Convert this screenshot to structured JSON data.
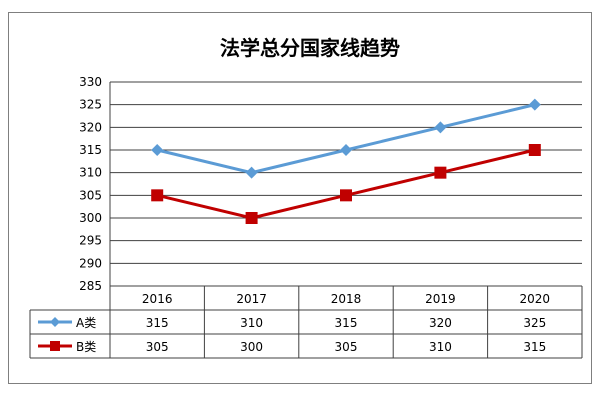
{
  "chart_data": {
    "type": "line",
    "title": "法学总分国家线趋势",
    "categories": [
      "2016",
      "2017",
      "2018",
      "2019",
      "2020"
    ],
    "series": [
      {
        "name": "A类",
        "values": [
          315,
          310,
          315,
          320,
          325
        ],
        "color": "#5b9bd5",
        "marker": "diamond"
      },
      {
        "name": "B类",
        "values": [
          305,
          300,
          305,
          310,
          315
        ],
        "color": "#c00000",
        "marker": "square"
      }
    ],
    "ylim": [
      285,
      330
    ],
    "yticks": [
      285,
      290,
      295,
      300,
      305,
      310,
      315,
      320,
      325,
      330
    ],
    "grid": true,
    "legend": "data-table"
  }
}
